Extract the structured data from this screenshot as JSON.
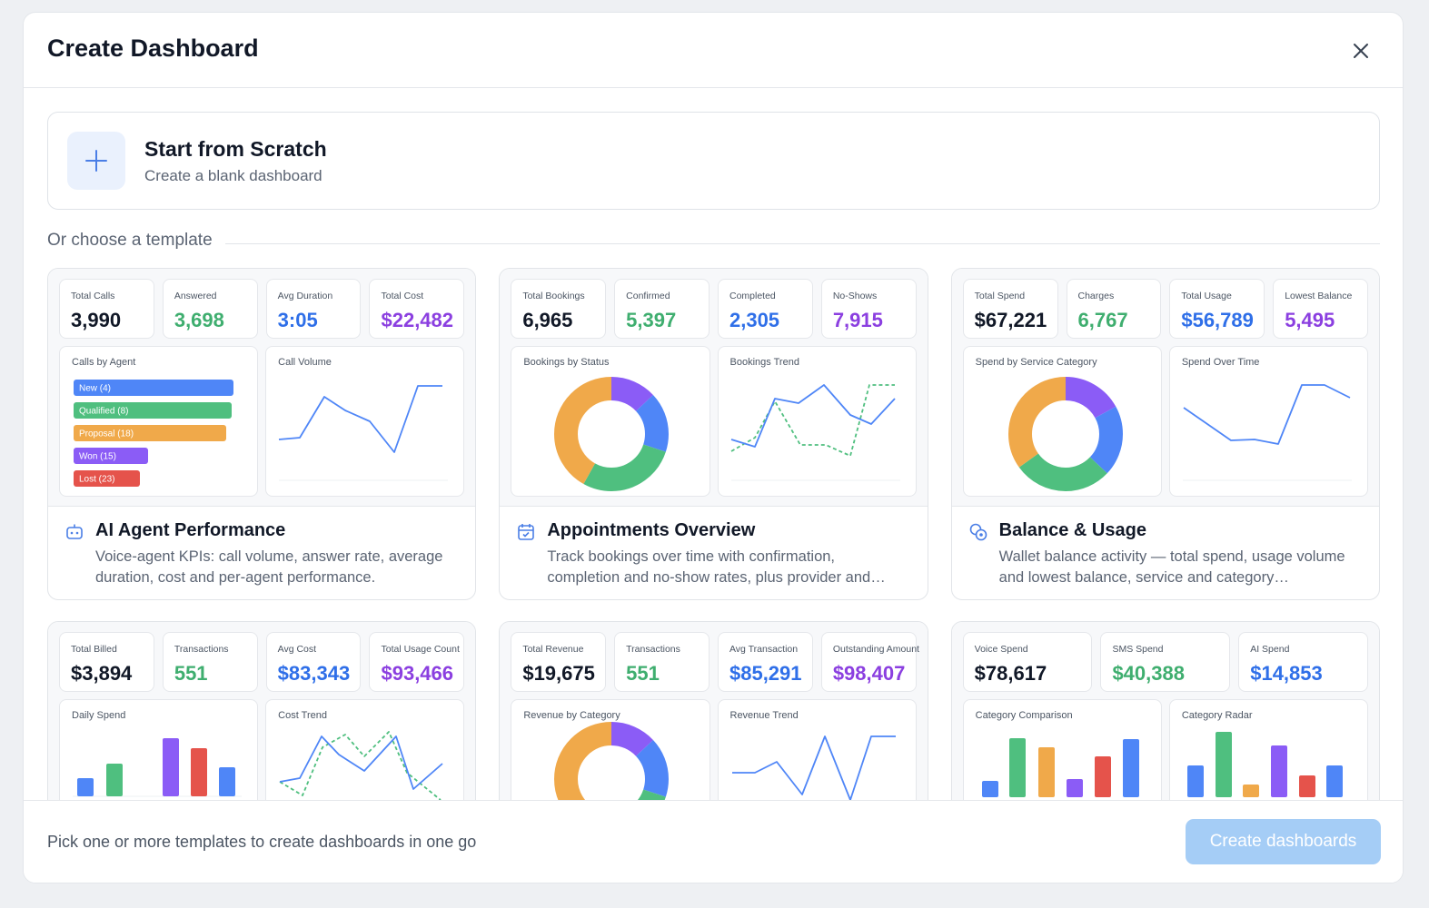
{
  "dialog": {
    "title": "Create Dashboard"
  },
  "scratch": {
    "title": "Start from Scratch",
    "subtitle": "Create a blank dashboard"
  },
  "section_label": "Or choose a template",
  "templates": [
    {
      "kpis": [
        {
          "label": "Total Calls",
          "value": "3,990"
        },
        {
          "label": "Answered",
          "value": "3,698"
        },
        {
          "label": "Avg Duration",
          "value": "3:05"
        },
        {
          "label": "Total Cost",
          "value": "$22,482"
        }
      ],
      "panels": [
        {
          "title": "Calls by Agent",
          "labels": [
            "New (4)",
            "Qualified (8)",
            "Proposal (18)",
            "Won (15)",
            "Lost (23)"
          ]
        },
        {
          "title": "Call Volume"
        }
      ],
      "name": "AI Agent Performance",
      "description": "Voice-agent KPIs: call volume, answer rate, average duration, cost and per-agent performance."
    },
    {
      "kpis": [
        {
          "label": "Total Bookings",
          "value": "6,965"
        },
        {
          "label": "Confirmed",
          "value": "5,397"
        },
        {
          "label": "Completed",
          "value": "2,305"
        },
        {
          "label": "No-Shows",
          "value": "7,915"
        }
      ],
      "panels": [
        {
          "title": "Bookings by Status"
        },
        {
          "title": "Bookings Trend"
        }
      ],
      "name": "Appointments Overview",
      "description": "Track bookings over time with confirmation, completion and no-show rates, plus provider and…"
    },
    {
      "kpis": [
        {
          "label": "Total Spend",
          "value": "$67,221"
        },
        {
          "label": "Charges",
          "value": "6,767"
        },
        {
          "label": "Total Usage",
          "value": "$56,789"
        },
        {
          "label": "Lowest Balance",
          "value": "5,495"
        }
      ],
      "panels": [
        {
          "title": "Spend by Service Category"
        },
        {
          "title": "Spend Over Time"
        }
      ],
      "name": "Balance & Usage",
      "description": "Wallet balance activity — total spend, usage volume and lowest balance, service and category…"
    },
    {
      "kpis": [
        {
          "label": "Total Billed",
          "value": "$3,894"
        },
        {
          "label": "Transactions",
          "value": "551"
        },
        {
          "label": "Avg Cost",
          "value": "$83,343"
        },
        {
          "label": "Total Usage Count",
          "value": "$93,466"
        }
      ],
      "panels": [
        {
          "title": "Daily Spend"
        },
        {
          "title": "Cost Trend"
        }
      ]
    },
    {
      "kpis": [
        {
          "label": "Total Revenue",
          "value": "$19,675"
        },
        {
          "label": "Transactions",
          "value": "551"
        },
        {
          "label": "Avg Transaction",
          "value": "$85,291"
        },
        {
          "label": "Outstanding Amount",
          "value": "$98,407"
        }
      ],
      "panels": [
        {
          "title": "Revenue by Category"
        },
        {
          "title": "Revenue Trend"
        }
      ]
    },
    {
      "kpis": [
        {
          "label": "Voice Spend",
          "value": "$78,617"
        },
        {
          "label": "SMS Spend",
          "value": "$40,388"
        },
        {
          "label": "AI Spend",
          "value": "$14,853"
        }
      ],
      "panels": [
        {
          "title": "Category Comparison"
        },
        {
          "title": "Category Radar"
        }
      ]
    }
  ],
  "footer": {
    "hint": "Pick one or more templates to create dashboards in one go",
    "button": "Create dashboards"
  }
}
